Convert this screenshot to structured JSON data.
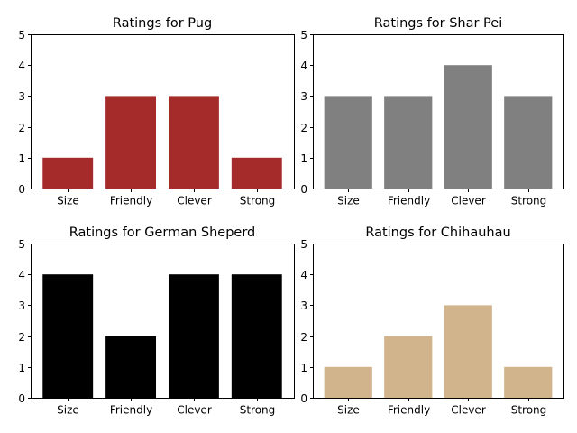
{
  "chart_data": [
    {
      "type": "bar",
      "title": "Ratings for Pug",
      "categories": [
        "Size",
        "Friendly",
        "Clever",
        "Strong"
      ],
      "values": [
        1,
        3,
        3,
        1
      ],
      "color": "#a52a2a",
      "ylim": [
        0,
        5
      ],
      "yticks": [
        0,
        1,
        2,
        3,
        4,
        5
      ],
      "xlabel": "",
      "ylabel": ""
    },
    {
      "type": "bar",
      "title": "Ratings for Shar Pei",
      "categories": [
        "Size",
        "Friendly",
        "Clever",
        "Strong"
      ],
      "values": [
        3,
        3,
        4,
        3
      ],
      "color": "#808080",
      "ylim": [
        0,
        5
      ],
      "yticks": [
        0,
        1,
        2,
        3,
        4,
        5
      ],
      "xlabel": "",
      "ylabel": ""
    },
    {
      "type": "bar",
      "title": "Ratings for German Sheperd",
      "categories": [
        "Size",
        "Friendly",
        "Clever",
        "Strong"
      ],
      "values": [
        4,
        2,
        4,
        4
      ],
      "color": "#000000",
      "ylim": [
        0,
        5
      ],
      "yticks": [
        0,
        1,
        2,
        3,
        4,
        5
      ],
      "xlabel": "",
      "ylabel": ""
    },
    {
      "type": "bar",
      "title": "Ratings for Chihauhau",
      "categories": [
        "Size",
        "Friendly",
        "Clever",
        "Strong"
      ],
      "values": [
        1,
        2,
        3,
        1
      ],
      "color": "#d2b48c",
      "ylim": [
        0,
        5
      ],
      "yticks": [
        0,
        1,
        2,
        3,
        4,
        5
      ],
      "xlabel": "",
      "ylabel": ""
    }
  ]
}
